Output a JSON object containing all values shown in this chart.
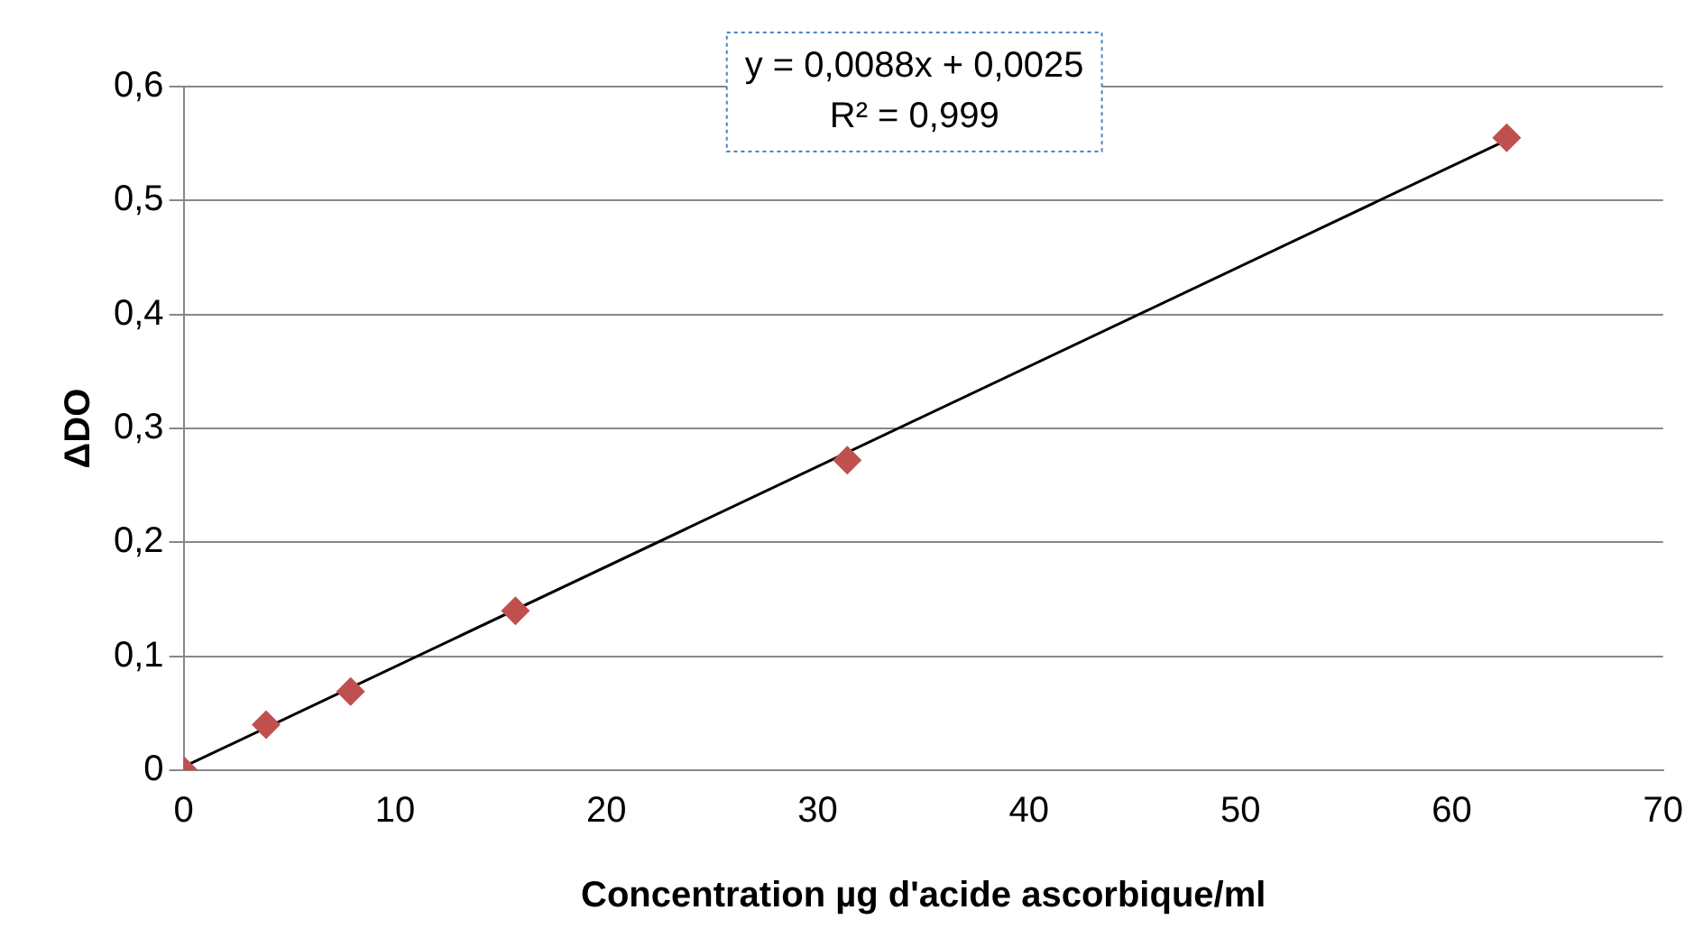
{
  "chart_data": {
    "type": "scatter",
    "xlabel": "Concentration µg d'acide ascorbique/ml",
    "ylabel": "ΔDO",
    "xlim": [
      0,
      70
    ],
    "xticks": [
      0,
      10,
      20,
      30,
      40,
      50,
      60,
      70
    ],
    "ylim": [
      0,
      0.6
    ],
    "yticks": [
      {
        "value": 0,
        "label": "0"
      },
      {
        "value": 0.1,
        "label": "0,1"
      },
      {
        "value": 0.2,
        "label": "0,2"
      },
      {
        "value": 0.3,
        "label": "0,3"
      },
      {
        "value": 0.4,
        "label": "0,4"
      },
      {
        "value": 0.5,
        "label": "0,5"
      },
      {
        "value": 0.6,
        "label": "0,6"
      }
    ],
    "grid": "y",
    "legend": false,
    "marker": "diamond",
    "series": [
      {
        "color": "#c0504d",
        "x": [
          0,
          3.9,
          7.9,
          15.7,
          31.4,
          62.6
        ],
        "values": [
          0,
          0.04,
          0.069,
          0.14,
          0.272,
          0.555
        ]
      },
      {
        "type": "line",
        "color": "#000000",
        "marker": "none",
        "x": [
          0,
          62.6
        ],
        "values": [
          0.003,
          0.553
        ]
      }
    ],
    "annotations": [
      "y = 0,0088x + 0,0025",
      "R² = 0,999"
    ]
  }
}
